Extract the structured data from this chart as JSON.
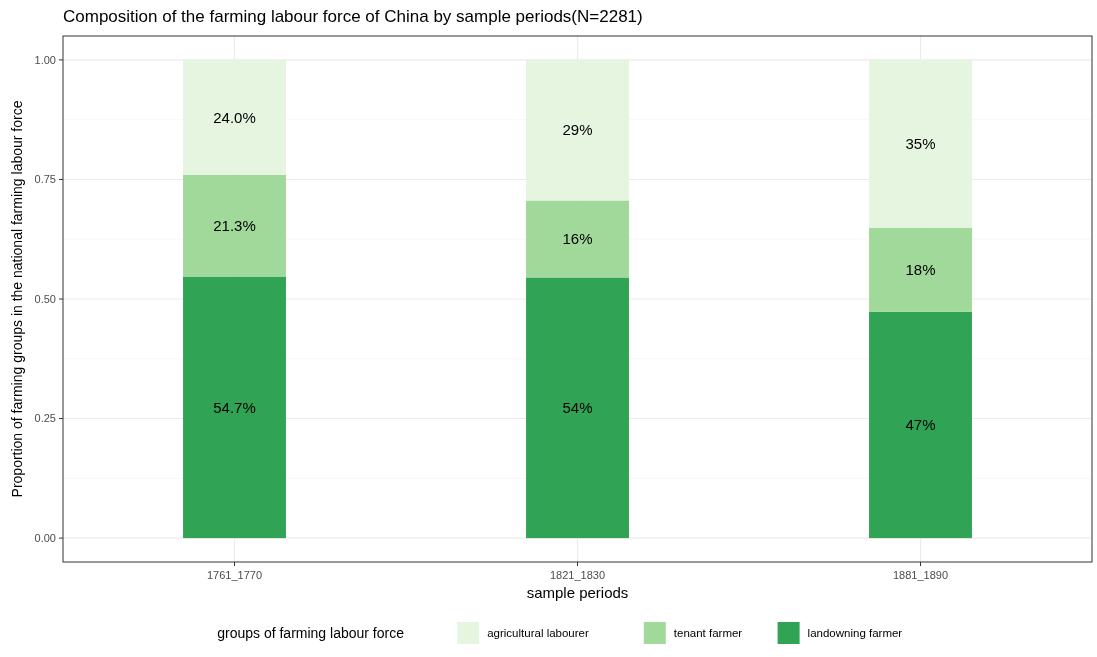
{
  "chart_data": {
    "type": "bar",
    "title": "Composition of the farming labour force of China by sample periods(N=2281)",
    "xlabel": "sample periods",
    "ylabel": "Proportion of farming groups in the national farming labour force",
    "legend_title": "groups of farming labour force",
    "categories": [
      "1761_1770",
      "1821_1830",
      "1881_1890"
    ],
    "stacked": true,
    "series": [
      {
        "name": "landowning farmer",
        "color": "#31a354",
        "values": [
          0.547,
          0.545,
          0.473
        ],
        "value_labels": [
          "54.7%",
          "54%",
          "47%"
        ]
      },
      {
        "name": "tenant farmer",
        "color": "#a1d99b",
        "values": [
          0.213,
          0.161,
          0.176
        ],
        "value_labels": [
          "21.3%",
          "16%",
          "18%"
        ]
      },
      {
        "name": "agricultural labourer",
        "color": "#e5f5e0",
        "values": [
          0.24,
          0.294,
          0.351
        ],
        "value_labels": [
          "24.0%",
          "29%",
          "35%"
        ]
      }
    ],
    "ylim": [
      -0.05,
      1.05
    ],
    "yticks": [
      {
        "value": 0,
        "label": "0.00"
      },
      {
        "value": 0.25,
        "label": "0.25"
      },
      {
        "value": 0.5,
        "label": "0.50"
      },
      {
        "value": 0.75,
        "label": "0.75"
      },
      {
        "value": 1,
        "label": "1.00"
      }
    ],
    "grid": true,
    "legend": "bottom"
  }
}
